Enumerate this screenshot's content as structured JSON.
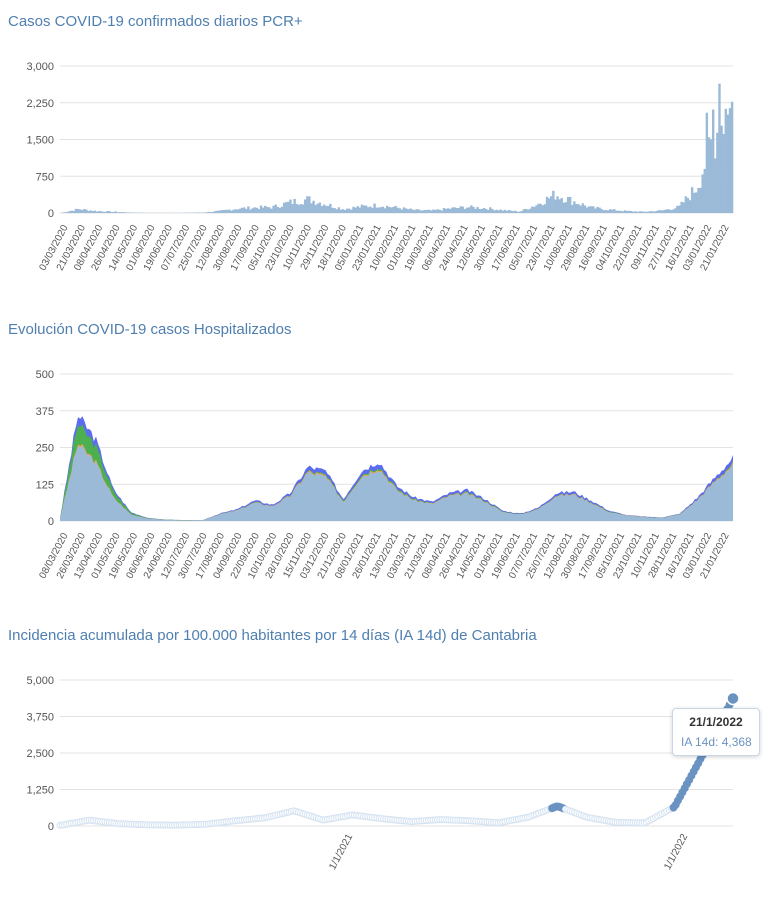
{
  "charts": [
    {
      "title": "Casos COVID-19 confirmados diarios PCR+"
    },
    {
      "title": "Evolución COVID-19 casos  Hospitalizados"
    },
    {
      "title": "Incidencia acumulada por 100.000 habitantes por 14 días (IA 14d) de Cantabria"
    }
  ],
  "tooltip": {
    "date": "21/1/2022",
    "label": "IA 14d",
    "value": "4,368"
  },
  "colors": {
    "title": "#4f7fb0",
    "area": "#9bbad8",
    "area_dark": "#7fa3c9",
    "blue": "#5b6cf0",
    "green": "#4caf50",
    "orange": "#f0a040",
    "marker": "#6a93c2"
  },
  "chart_data": [
    {
      "type": "area",
      "yticks": [
        "0",
        "750",
        "1,500",
        "2,250",
        "3,000"
      ],
      "ylim": [
        0,
        3000
      ],
      "categories": [
        "03/03/2020",
        "21/03/2020",
        "08/04/2020",
        "26/04/2020",
        "14/05/2020",
        "01/06/2020",
        "19/06/2020",
        "07/07/2020",
        "25/07/2020",
        "12/08/2020",
        "30/08/2020",
        "17/09/2020",
        "05/10/2020",
        "23/10/2020",
        "10/11/2020",
        "29/11/2020",
        "18/12/2020",
        "05/01/2021",
        "23/01/2021",
        "10/02/2021",
        "01/03/2021",
        "19/03/2021",
        "06/04/2021",
        "24/04/2021",
        "12/05/2021",
        "30/05/2021",
        "17/06/2021",
        "05/07/2021",
        "23/07/2021",
        "10/08/2021",
        "29/08/2021",
        "16/09/2021",
        "04/10/2021",
        "22/10/2021",
        "09/11/2021",
        "27/11/2021",
        "16/12/2021",
        "03/01/2022",
        "21/01/2022"
      ],
      "series": [
        {
          "values": [
            2,
            80,
            40,
            25,
            8,
            3,
            2,
            4,
            10,
            40,
            90,
            110,
            120,
            220,
            280,
            180,
            80,
            130,
            160,
            110,
            60,
            50,
            90,
            120,
            100,
            60,
            30,
            180,
            380,
            240,
            110,
            70,
            40,
            25,
            50,
            120,
            520,
            1600,
            2100
          ]
        }
      ]
    },
    {
      "type": "area",
      "yticks": [
        "0",
        "125",
        "250",
        "375",
        "500"
      ],
      "ylim": [
        0,
        500
      ],
      "categories": [
        "08/03/2020",
        "26/03/2020",
        "13/04/2020",
        "01/05/2020",
        "19/05/2020",
        "06/06/2020",
        "24/06/2020",
        "12/07/2020",
        "30/07/2020",
        "17/08/2020",
        "04/09/2020",
        "22/09/2020",
        "10/10/2020",
        "28/10/2020",
        "15/11/2020",
        "03/12/2020",
        "21/12/2020",
        "08/01/2021",
        "26/01/2021",
        "13/02/2021",
        "03/03/2021",
        "21/03/2021",
        "08/04/2021",
        "26/04/2021",
        "14/05/2021",
        "01/06/2021",
        "19/06/2021",
        "07/07/2021",
        "25/07/2021",
        "12/08/2021",
        "30/08/2021",
        "17/09/2021",
        "05/10/2021",
        "23/10/2021",
        "10/11/2021",
        "28/11/2021",
        "16/12/2021",
        "03/01/2022",
        "21/01/2022"
      ],
      "series": [
        {
          "values": [
            10,
            360,
            280,
            110,
            30,
            10,
            5,
            3,
            2,
            25,
            40,
            70,
            55,
            95,
            185,
            170,
            75,
            170,
            205,
            120,
            80,
            65,
            95,
            105,
            75,
            35,
            25,
            45,
            95,
            100,
            70,
            35,
            20,
            15,
            12,
            25,
            80,
            150,
            215
          ]
        },
        {
          "values": [
            8,
            260,
            200,
            80,
            22,
            8,
            4,
            2,
            2,
            22,
            36,
            62,
            50,
            85,
            165,
            150,
            65,
            150,
            180,
            105,
            70,
            58,
            85,
            92,
            66,
            30,
            22,
            40,
            85,
            90,
            62,
            30,
            18,
            13,
            10,
            22,
            72,
            135,
            190
          ]
        }
      ]
    },
    {
      "type": "line",
      "yticks": [
        "0",
        "1,250",
        "2,500",
        "3,750",
        "5,000"
      ],
      "ylim": [
        0,
        5000
      ],
      "xticks": [
        "1/1/2021",
        "1/1/2022"
      ],
      "x": [
        "2020-03",
        "2020-04",
        "2020-05",
        "2020-06",
        "2020-07",
        "2020-08",
        "2020-09",
        "2020-10",
        "2020-11",
        "2020-12",
        "2021-01",
        "2021-02",
        "2021-03",
        "2021-04",
        "2021-05",
        "2021-06",
        "2021-07",
        "2021-08",
        "2021-09",
        "2021-10",
        "2021-11",
        "2021-12",
        "2022-01-10",
        "2022-01-21"
      ],
      "series": [
        {
          "name": "IA 14d",
          "values": [
            20,
            200,
            80,
            40,
            30,
            60,
            180,
            280,
            520,
            200,
            380,
            250,
            150,
            220,
            180,
            110,
            300,
            680,
            300,
            120,
            110,
            650,
            2500,
            4368
          ]
        }
      ]
    }
  ]
}
